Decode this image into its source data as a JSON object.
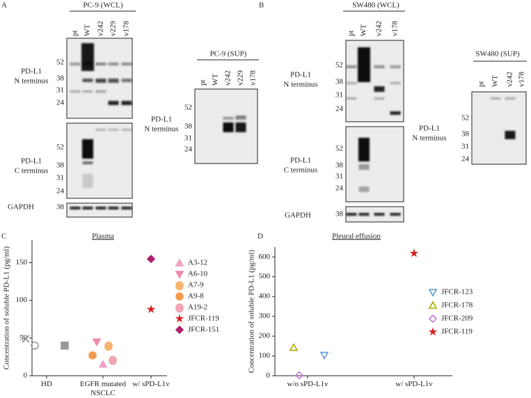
{
  "figure": {
    "panels": [
      {
        "label": "A",
        "groups": [
          {
            "title": "PC-9 (WCL)",
            "lanes": [
              "pt",
              "WT",
              "v242",
              "v229",
              "v178"
            ],
            "blots": [
              {
                "name": [
                  "PD-L1",
                  "N terminus"
                ],
                "markers": [
                  "52",
                  "38",
                  "31",
                  "24"
                ]
              },
              {
                "name": [
                  "PD-L1",
                  "C terminus"
                ],
                "markers": [
                  "52",
                  "38",
                  "31",
                  "24"
                ]
              },
              {
                "name": [
                  "GAPDH"
                ],
                "markers": [
                  "38"
                ]
              }
            ]
          },
          {
            "title": "PC-9 (SUP)",
            "lanes": [
              "pt",
              "WT",
              "v242",
              "v229",
              "v178"
            ],
            "blots": [
              {
                "name": [
                  "PD-L1",
                  "N terminus"
                ],
                "markers": [
                  "52",
                  "38",
                  "31",
                  "24"
                ]
              }
            ]
          }
        ]
      },
      {
        "label": "B",
        "groups": [
          {
            "title": "SW480 (WCL)",
            "lanes": [
              "pt",
              "WT",
              "v242",
              "v178"
            ],
            "blots": [
              {
                "name": [
                  "PD-L1",
                  "N terminus"
                ],
                "markers": [
                  "52",
                  "38",
                  "31",
                  "24"
                ]
              },
              {
                "name": [
                  "PD-L1",
                  "C terminus"
                ],
                "markers": [
                  "52",
                  "38",
                  "31",
                  "24"
                ]
              },
              {
                "name": [
                  "GAPDH"
                ],
                "markers": [
                  "38"
                ]
              }
            ]
          },
          {
            "title": "SW480 (SUP)",
            "lanes": [
              "pt",
              "WT",
              "v242",
              "v178"
            ],
            "blots": [
              {
                "name": [
                  "PD-L1",
                  "N terminus"
                ],
                "markers": [
                  "52",
                  "38",
                  "31",
                  "24"
                ]
              }
            ]
          }
        ]
      }
    ]
  },
  "chart_data": [
    {
      "type": "scatter",
      "panel": "C",
      "title": "Plasma",
      "ylabel": "Concentration of soluble PD-L1 (pg/ml)",
      "categories": [
        "HD",
        "EGFR mutated NSCLC",
        "w/ sPD-L1v"
      ],
      "ylim": [
        0,
        180
      ],
      "yticks": [
        0,
        50,
        100,
        150
      ],
      "series": [
        {
          "x": [
            "HD"
          ],
          "values": [
            49
          ],
          "color": "#999999",
          "marker": "x",
          "filled": false
        },
        {
          "x": [
            "HD"
          ],
          "values": [
            40
          ],
          "color": "#999999",
          "marker": "circle",
          "filled": false
        },
        {
          "x": [
            "HD"
          ],
          "values": [
            40
          ],
          "color": "#999999",
          "marker": "square",
          "filled": true
        },
        {
          "name": "A3-12",
          "x": [
            "EGFR mutated NSCLC"
          ],
          "values": [
            15
          ],
          "color": "#f2a0c4",
          "marker": "triangle-up",
          "filled": true
        },
        {
          "name": "A6-10",
          "x": [
            "EGFR mutated NSCLC"
          ],
          "values": [
            45
          ],
          "color": "#f088ac",
          "marker": "triangle-down",
          "filled": true
        },
        {
          "name": "A7-9",
          "x": [
            "EGFR mutated NSCLC"
          ],
          "values": [
            40
          ],
          "color": "#f5b068",
          "marker": "half-circle",
          "filled": true
        },
        {
          "name": "A9-8",
          "x": [
            "EGFR mutated NSCLC"
          ],
          "values": [
            27
          ],
          "color": "#f39a4a",
          "marker": "circle",
          "filled": true
        },
        {
          "name": "A19-2",
          "x": [
            "EGFR mutated NSCLC"
          ],
          "values": [
            21
          ],
          "color": "#f0a0b0",
          "marker": "half-circle",
          "filled": true
        },
        {
          "name": "JFCR-119",
          "x": [
            "w/ sPD-L1v"
          ],
          "values": [
            88
          ],
          "color": "#d42020",
          "marker": "star",
          "filled": true
        },
        {
          "name": "JFCR-151",
          "x": [
            "w/ sPD-L1v"
          ],
          "values": [
            155
          ],
          "color": "#b0206a",
          "marker": "diamond",
          "filled": true
        }
      ]
    },
    {
      "type": "scatter",
      "panel": "D",
      "title": "Pleural effusion",
      "ylabel": "Concentration of soluble PD-L1 (pg/ml)",
      "categories": [
        "w/o sPD-L1v",
        "w/ sPD-L1v"
      ],
      "ylim": [
        0,
        650
      ],
      "yticks": [
        0,
        100,
        200,
        300,
        400,
        500,
        600
      ],
      "series": [
        {
          "name": "JFCR-123",
          "x": [
            "w/o sPD-L1v"
          ],
          "values": [
            104
          ],
          "color": "#5b9bd5",
          "marker": "triangle-down",
          "filled": false
        },
        {
          "name": "JFCR-178",
          "x": [
            "w/o sPD-L1v"
          ],
          "values": [
            142
          ],
          "color": "#a8a800",
          "marker": "triangle-up",
          "filled": false
        },
        {
          "name": "JFCR-209",
          "x": [
            "w/o sPD-L1v"
          ],
          "values": [
            2
          ],
          "color": "#c77be0",
          "marker": "diamond",
          "filled": false
        },
        {
          "name": "JFCR-119",
          "x": [
            "w/ sPD-L1v"
          ],
          "values": [
            618
          ],
          "color": "#d42020",
          "marker": "star",
          "filled": true
        }
      ]
    }
  ]
}
